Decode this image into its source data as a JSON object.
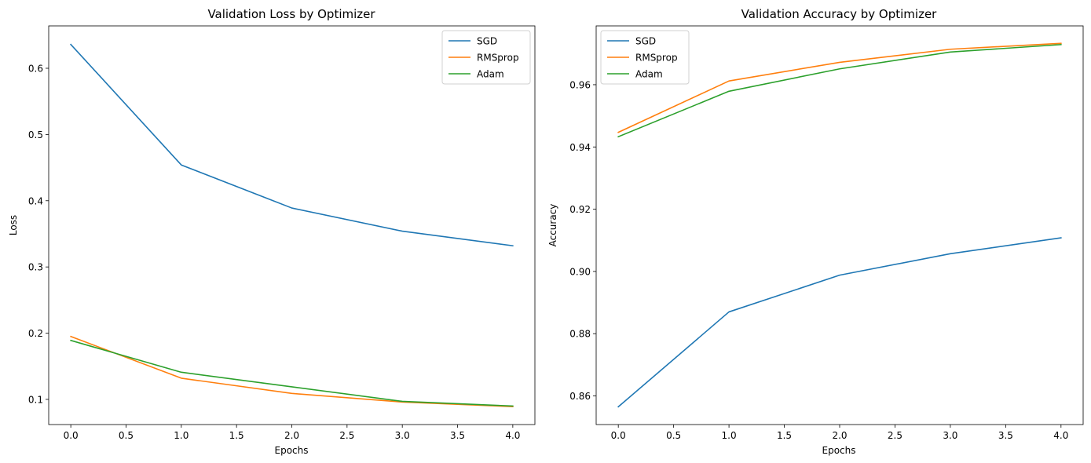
{
  "chart_data": [
    {
      "type": "line",
      "title": "Validation Loss by Optimizer",
      "xlabel": "Epochs",
      "ylabel": "Loss",
      "x": [
        0,
        1,
        2,
        3,
        4
      ],
      "xlim": [
        -0.2,
        4.2
      ],
      "ylim": [
        0.062,
        0.664
      ],
      "xticks": [
        "0.0",
        "0.5",
        "1.0",
        "1.5",
        "2.0",
        "2.5",
        "3.0",
        "3.5",
        "4.0"
      ],
      "yticks": [
        "0.1",
        "0.2",
        "0.3",
        "0.4",
        "0.5",
        "0.6"
      ],
      "grid": false,
      "legend": "upper right",
      "series": [
        {
          "name": "SGD",
          "color": "#1f77b4",
          "values": [
            0.636,
            0.454,
            0.389,
            0.354,
            0.332
          ]
        },
        {
          "name": "RMSprop",
          "color": "#ff7f0e",
          "values": [
            0.195,
            0.132,
            0.109,
            0.096,
            0.089
          ]
        },
        {
          "name": "Adam",
          "color": "#2ca02c",
          "values": [
            0.189,
            0.141,
            0.119,
            0.097,
            0.09
          ]
        }
      ]
    },
    {
      "type": "line",
      "title": "Validation Accuracy by Optimizer",
      "xlabel": "Epochs",
      "ylabel": "Accuracy",
      "x": [
        0,
        1,
        2,
        3,
        4
      ],
      "xlim": [
        -0.2,
        4.2
      ],
      "ylim": [
        0.8508,
        0.9789
      ],
      "xticks": [
        "0.0",
        "0.5",
        "1.0",
        "1.5",
        "2.0",
        "2.5",
        "3.0",
        "3.5",
        "4.0"
      ],
      "yticks": [
        "0.86",
        "0.88",
        "0.90",
        "0.92",
        "0.94",
        "0.96"
      ],
      "grid": false,
      "legend": "upper left",
      "series": [
        {
          "name": "SGD",
          "color": "#1f77b4",
          "values": [
            0.8565,
            0.887,
            0.8988,
            0.9057,
            0.9108
          ]
        },
        {
          "name": "RMSprop",
          "color": "#ff7f0e",
          "values": [
            0.9447,
            0.9612,
            0.9672,
            0.9714,
            0.9733
          ]
        },
        {
          "name": "Adam",
          "color": "#2ca02c",
          "values": [
            0.9433,
            0.9579,
            0.9651,
            0.9705,
            0.9729
          ]
        }
      ]
    }
  ]
}
